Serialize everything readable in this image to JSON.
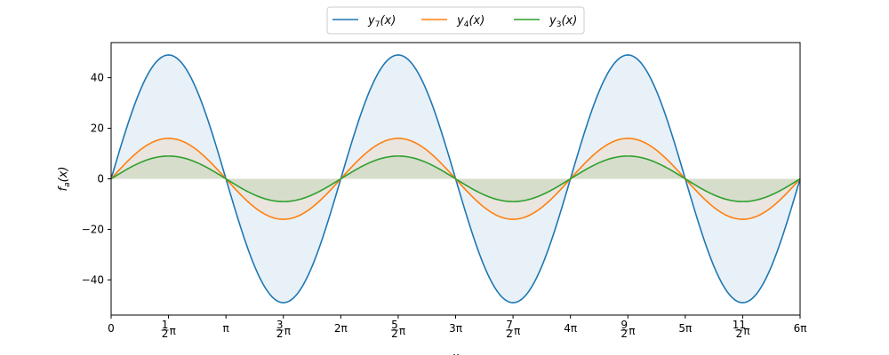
{
  "chart_data": {
    "type": "line",
    "title": "",
    "xlabel": "x",
    "ylabel": "f_a(x)",
    "ylabel_main": "f",
    "ylabel_sub": "a",
    "ylabel_tail": "(x)",
    "xlim": [
      0,
      18.8496
    ],
    "ylim": [
      -53.9,
      53.9
    ],
    "grid": false,
    "legend_position": "top-center",
    "function": "y = a^2 * sin(x)",
    "x_ticks": [
      {
        "value": 0,
        "label": "0"
      },
      {
        "value": 1.5708,
        "num": "1",
        "den": "2",
        "tail": "π"
      },
      {
        "value": 3.1416,
        "label": "π"
      },
      {
        "value": 4.7124,
        "num": "3",
        "den": "2",
        "tail": "π"
      },
      {
        "value": 6.2832,
        "label": "2π"
      },
      {
        "value": 7.854,
        "num": "5",
        "den": "2",
        "tail": "π"
      },
      {
        "value": 9.4248,
        "label": "3π"
      },
      {
        "value": 10.9956,
        "num": "7",
        "den": "2",
        "tail": "π"
      },
      {
        "value": 12.5664,
        "label": "4π"
      },
      {
        "value": 14.1372,
        "num": "9",
        "den": "2",
        "tail": "π"
      },
      {
        "value": 15.708,
        "label": "5π"
      },
      {
        "value": 17.2788,
        "num": "11",
        "den": "2",
        "tail": "π"
      },
      {
        "value": 18.8496,
        "label": "6π"
      }
    ],
    "y_ticks": [
      {
        "value": 40,
        "label": "40"
      },
      {
        "value": 20,
        "label": "20"
      },
      {
        "value": 0,
        "label": "0"
      },
      {
        "value": -20,
        "label": "−20"
      },
      {
        "value": -40,
        "label": "−40"
      }
    ],
    "series": [
      {
        "name": "y_7(x)",
        "base": "y",
        "sub": "7",
        "tail": "(x)",
        "amplitude": 49,
        "color": "#1f77b4",
        "fill": "#1f77b4"
      },
      {
        "name": "y_4(x)",
        "base": "y",
        "sub": "4",
        "tail": "(x)",
        "amplitude": 16,
        "color": "#ff7f0e",
        "fill": "#ff7f0e"
      },
      {
        "name": "y_3(x)",
        "base": "y",
        "sub": "3",
        "tail": "(x)",
        "amplitude": 9,
        "color": "#2ca02c",
        "fill": "#2ca02c"
      }
    ]
  }
}
